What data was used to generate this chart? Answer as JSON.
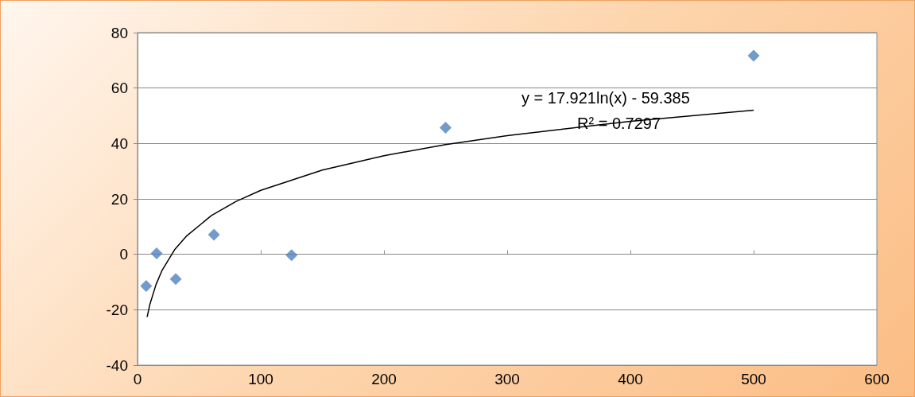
{
  "chart_data": {
    "type": "scatter",
    "marker": "diamond",
    "grid": "y",
    "xlim": [
      0,
      600
    ],
    "xticks": [
      0,
      100,
      200,
      300,
      400,
      500,
      600
    ],
    "ylim": [
      -40,
      80
    ],
    "yticks": [
      -40,
      -20,
      0,
      20,
      40,
      60,
      80
    ],
    "annotations": [
      "y = 17.921ln(x) - 59.385",
      "R² = 0.7297"
    ],
    "series": [
      {
        "color": "#4f81bd",
        "x": [
          7,
          15.5,
          31,
          62,
          125,
          250,
          500
        ],
        "values": [
          -11.4,
          0.3,
          -8.9,
          7.1,
          -0.3,
          45.7,
          71.7
        ]
      },
      {
        "type": "line",
        "color": "#000000",
        "marker": "none",
        "line_style": "solid",
        "x": [
          7.8,
          10,
          15,
          20,
          30,
          40,
          60,
          80,
          100,
          150,
          200,
          250,
          300,
          400,
          500
        ],
        "values": [
          -22.6,
          -18.1,
          -10.9,
          -5.7,
          1.6,
          6.7,
          14.0,
          19.1,
          23.1,
          30.4,
          35.6,
          39.6,
          42.8,
          48.0,
          52.0
        ]
      }
    ]
  }
}
